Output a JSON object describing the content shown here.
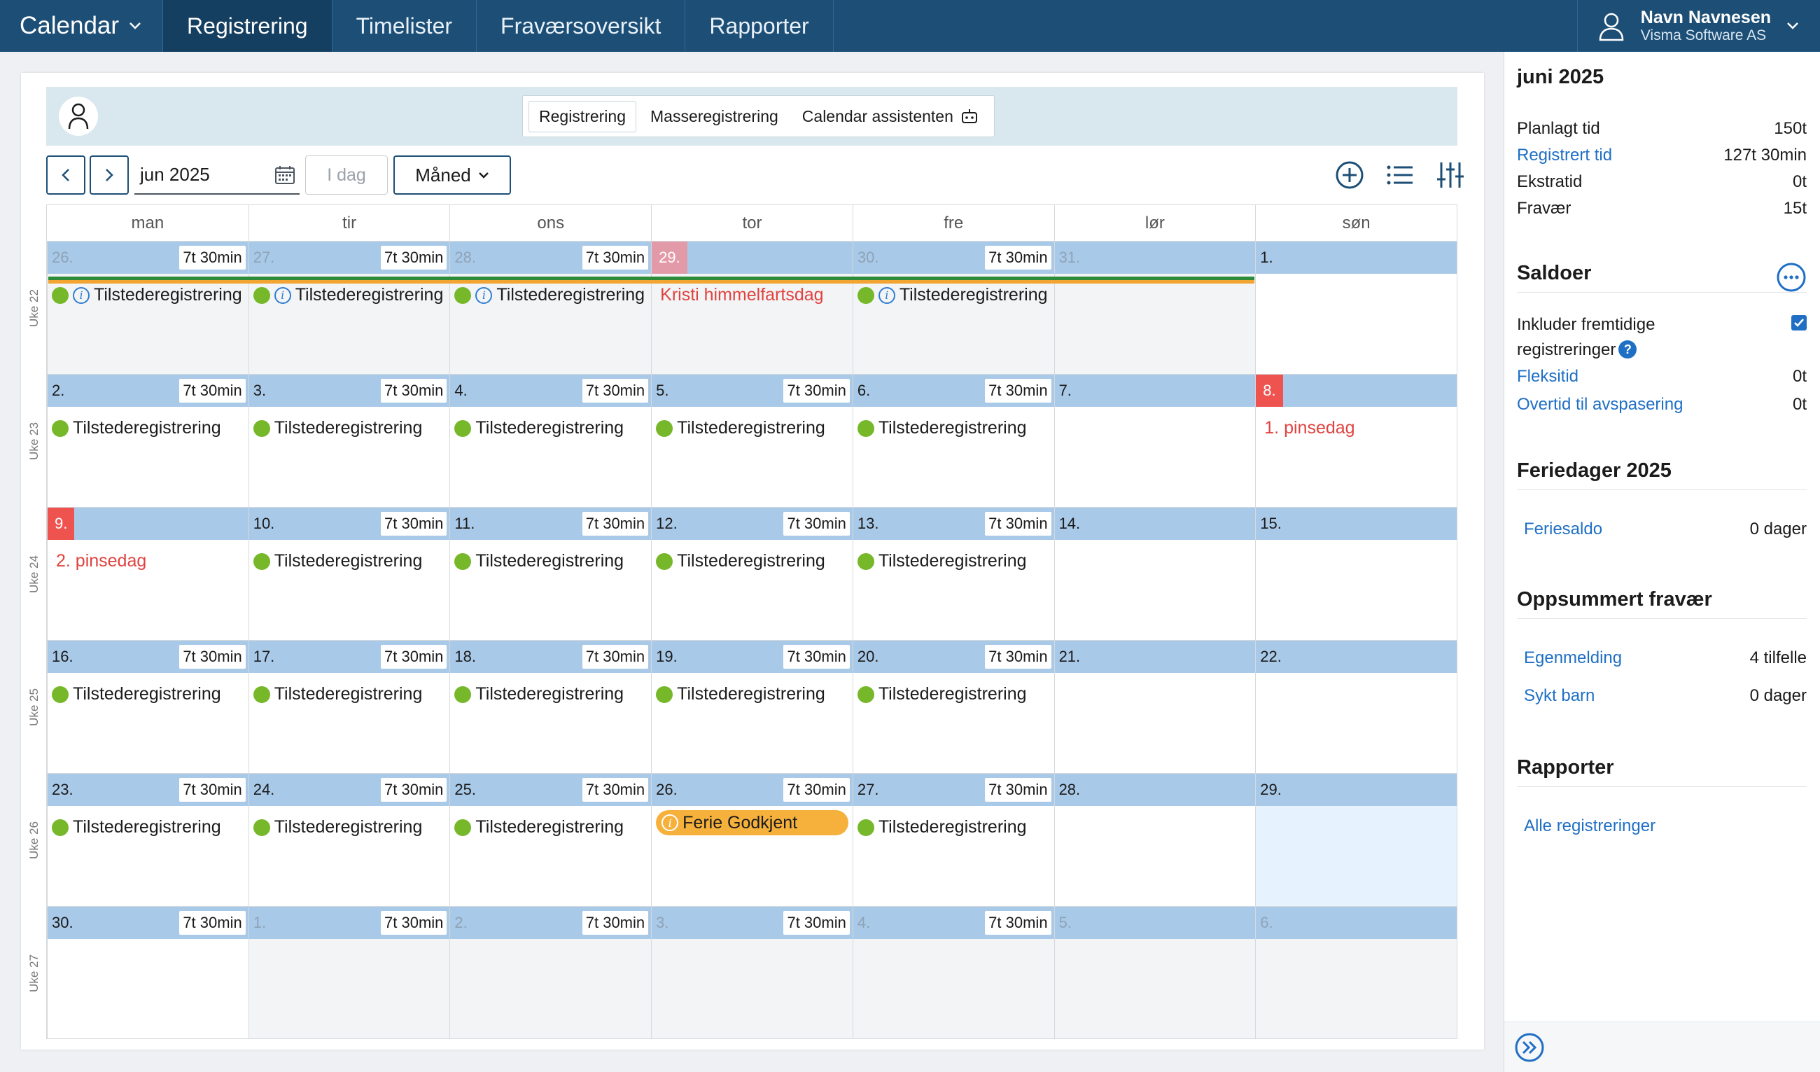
{
  "nav": {
    "brand": "Calendar",
    "tabs": [
      "Registrering",
      "Timelister",
      "Fraværsoversikt",
      "Rapporter"
    ],
    "user_name": "Navn Navnesen",
    "user_company": "Visma Software AS"
  },
  "reg_tabs": [
    "Registrering",
    "Masseregistrering",
    "Calendar assistenten"
  ],
  "toolbar": {
    "month": "jun 2025",
    "today": "I dag",
    "view": "Måned"
  },
  "weekdays": [
    "man",
    "tir",
    "ons",
    "tor",
    "fre",
    "lør",
    "søn"
  ],
  "weeks": [
    {
      "label": "Uke 22",
      "days": [
        {
          "n": "26.",
          "other": true,
          "hours": "7t 30min",
          "event": "Tilstederegistrering",
          "info": true
        },
        {
          "n": "27.",
          "other": true,
          "hours": "7t 30min",
          "event": "Tilstederegistrering",
          "info": true
        },
        {
          "n": "28.",
          "other": true,
          "hours": "7t 30min",
          "event": "Tilstederegistrering",
          "info": true
        },
        {
          "n": "29.",
          "other": true,
          "red": true,
          "holiday": "Kristi himmelfartsdag"
        },
        {
          "n": "30.",
          "other": true,
          "hours": "7t 30min",
          "event": "Tilstederegistrering",
          "info": true
        },
        {
          "n": "31.",
          "other": true
        },
        {
          "n": "1."
        }
      ]
    },
    {
      "label": "Uke 23",
      "days": [
        {
          "n": "2.",
          "hours": "7t 30min",
          "event": "Tilstederegistrering"
        },
        {
          "n": "3.",
          "hours": "7t 30min",
          "event": "Tilstederegistrering"
        },
        {
          "n": "4.",
          "hours": "7t 30min",
          "event": "Tilstederegistrering"
        },
        {
          "n": "5.",
          "hours": "7t 30min",
          "event": "Tilstederegistrering"
        },
        {
          "n": "6.",
          "hours": "7t 30min",
          "event": "Tilstederegistrering"
        },
        {
          "n": "7."
        },
        {
          "n": "8.",
          "red": true,
          "holiday": "1. pinsedag"
        }
      ]
    },
    {
      "label": "Uke 24",
      "days": [
        {
          "n": "9.",
          "red": true,
          "holiday": "2. pinsedag"
        },
        {
          "n": "10.",
          "hours": "7t 30min",
          "event": "Tilstederegistrering"
        },
        {
          "n": "11.",
          "hours": "7t 30min",
          "event": "Tilstederegistrering"
        },
        {
          "n": "12.",
          "hours": "7t 30min",
          "event": "Tilstederegistrering"
        },
        {
          "n": "13.",
          "hours": "7t 30min",
          "event": "Tilstederegistrering"
        },
        {
          "n": "14."
        },
        {
          "n": "15."
        }
      ]
    },
    {
      "label": "Uke 25",
      "days": [
        {
          "n": "16.",
          "hours": "7t 30min",
          "event": "Tilstederegistrering"
        },
        {
          "n": "17.",
          "hours": "7t 30min",
          "event": "Tilstederegistrering"
        },
        {
          "n": "18.",
          "hours": "7t 30min",
          "event": "Tilstederegistrering"
        },
        {
          "n": "19.",
          "hours": "7t 30min",
          "event": "Tilstederegistrering"
        },
        {
          "n": "20.",
          "hours": "7t 30min",
          "event": "Tilstederegistrering"
        },
        {
          "n": "21."
        },
        {
          "n": "22."
        }
      ]
    },
    {
      "label": "Uke 26",
      "days": [
        {
          "n": "23.",
          "hours": "7t 30min",
          "event": "Tilstederegistrering"
        },
        {
          "n": "24.",
          "hours": "7t 30min",
          "event": "Tilstederegistrering"
        },
        {
          "n": "25.",
          "hours": "7t 30min",
          "event": "Tilstederegistrering"
        },
        {
          "n": "26.",
          "hours": "7t 30min",
          "ferie": "Ferie Godkjent"
        },
        {
          "n": "27.",
          "hours": "7t 30min",
          "event": "Tilstederegistrering"
        },
        {
          "n": "28."
        },
        {
          "n": "29.",
          "highlight": true
        }
      ]
    },
    {
      "label": "Uke 27",
      "days": [
        {
          "n": "30.",
          "hours": "7t 30min"
        },
        {
          "n": "1.",
          "other": true,
          "hours": "7t 30min"
        },
        {
          "n": "2.",
          "other": true,
          "hours": "7t 30min"
        },
        {
          "n": "3.",
          "other": true,
          "hours": "7t 30min"
        },
        {
          "n": "4.",
          "other": true,
          "hours": "7t 30min"
        },
        {
          "n": "5.",
          "other": true
        },
        {
          "n": "6.",
          "other": true
        }
      ]
    }
  ],
  "sidebar": {
    "title": "juni 2025",
    "summary": [
      {
        "label": "Planlagt tid",
        "value": "150t",
        "link": false
      },
      {
        "label": "Registrert tid",
        "value": "127t 30min",
        "link": true
      },
      {
        "label": "Ekstratid",
        "value": "0t",
        "link": false
      },
      {
        "label": "Fravær",
        "value": "15t",
        "link": false
      }
    ],
    "saldoer_title": "Saldoer",
    "include_future_1": "Inkluder fremtidige",
    "include_future_2": "registreringer",
    "include_future_help": "?",
    "saldoer": [
      {
        "label": "Fleksitid",
        "value": "0t"
      },
      {
        "label": "Overtid til avspasering",
        "value": "0t"
      }
    ],
    "feriedager_title": "Feriedager 2025",
    "feriesaldo_label": "Feriesaldo",
    "feriesaldo_value": "0 dager",
    "fravaer_title": "Oppsummert fravær",
    "fravaer": [
      {
        "label": "Egenmelding",
        "value": "4 tilfelle"
      },
      {
        "label": "Sykt barn",
        "value": "0 dager"
      }
    ],
    "rapporter_title": "Rapporter",
    "rapporter_link": "Alle registreringer"
  },
  "colors": {
    "nav_bg": "#1d4f76",
    "day_header": "#a9c9e8",
    "present_dot": "#76b82a",
    "holiday_red": "#e0433f",
    "ferie": "#f6b13c",
    "link": "#1f6fc5"
  }
}
